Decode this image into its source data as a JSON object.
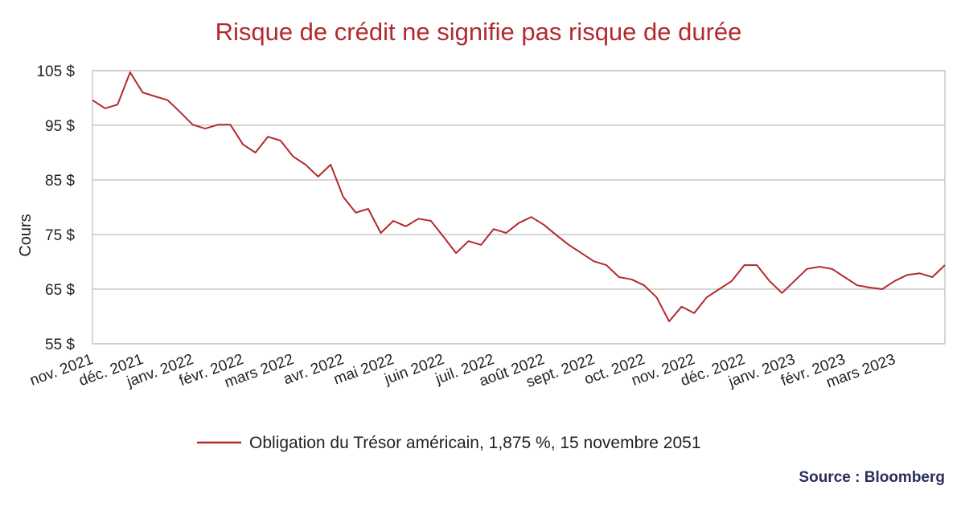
{
  "chart_data": {
    "type": "line",
    "title": "Risque de crédit ne signifie pas risque de durée",
    "ylabel": "Cours",
    "source": "Source : Bloomberg",
    "x": [
      "nov. 2021",
      null,
      null,
      null,
      "déc. 2021",
      null,
      null,
      null,
      "janv. 2022",
      null,
      null,
      null,
      "févr. 2022",
      null,
      null,
      null,
      "mars 2022",
      null,
      null,
      null,
      "avr. 2022",
      null,
      null,
      null,
      "mai 2022",
      null,
      null,
      null,
      "juin 2022",
      null,
      null,
      null,
      "juil. 2022",
      null,
      null,
      null,
      "août 2022",
      null,
      null,
      null,
      "sept. 2022",
      null,
      null,
      null,
      "oct. 2022",
      null,
      null,
      null,
      "nov. 2022",
      null,
      null,
      null,
      "déc. 2022",
      null,
      null,
      null,
      "janv. 2023",
      null,
      null,
      null,
      "févr. 2023",
      null,
      null,
      null,
      "mars 2023",
      null,
      null,
      null,
      null
    ],
    "series": [
      {
        "name": "Obligation du Trésor américain, 1,875 %, 15 novembre 2051",
        "color": "#b22a2e",
        "values": [
          99.6,
          98.1,
          98.8,
          104.7,
          101,
          100.3,
          99.6,
          97.4,
          95.1,
          94.4,
          95.1,
          95.1,
          91.5,
          90,
          92.9,
          92.2,
          89.3,
          87.8,
          85.6,
          87.8,
          81.9,
          79,
          79.7,
          75.3,
          77.5,
          76.5,
          77.9,
          77.5,
          74.6,
          71.6,
          73.8,
          73.1,
          76,
          75.3,
          77.1,
          78.2,
          76.8,
          74.9,
          73.1,
          71.6,
          70.1,
          69.4,
          67.2,
          66.8,
          65.7,
          63.5,
          59.1,
          61.8,
          60.6,
          63.5,
          65,
          66.5,
          69.4,
          69.4,
          66.5,
          64.3,
          66.5,
          68.7,
          69.1,
          68.7,
          67.2,
          65.7,
          65.3,
          65,
          66.5,
          67.6,
          67.9,
          67.2,
          69.4
        ]
      }
    ],
    "ylim": [
      55,
      105
    ],
    "yticks": [
      {
        "value": 55,
        "label": "55 $"
      },
      {
        "value": 65,
        "label": "65 $"
      },
      {
        "value": 75,
        "label": "75 $"
      },
      {
        "value": 85,
        "label": "85 $"
      },
      {
        "value": 95,
        "label": "95 $"
      },
      {
        "value": 105,
        "label": "105 $"
      }
    ],
    "grid": true
  }
}
